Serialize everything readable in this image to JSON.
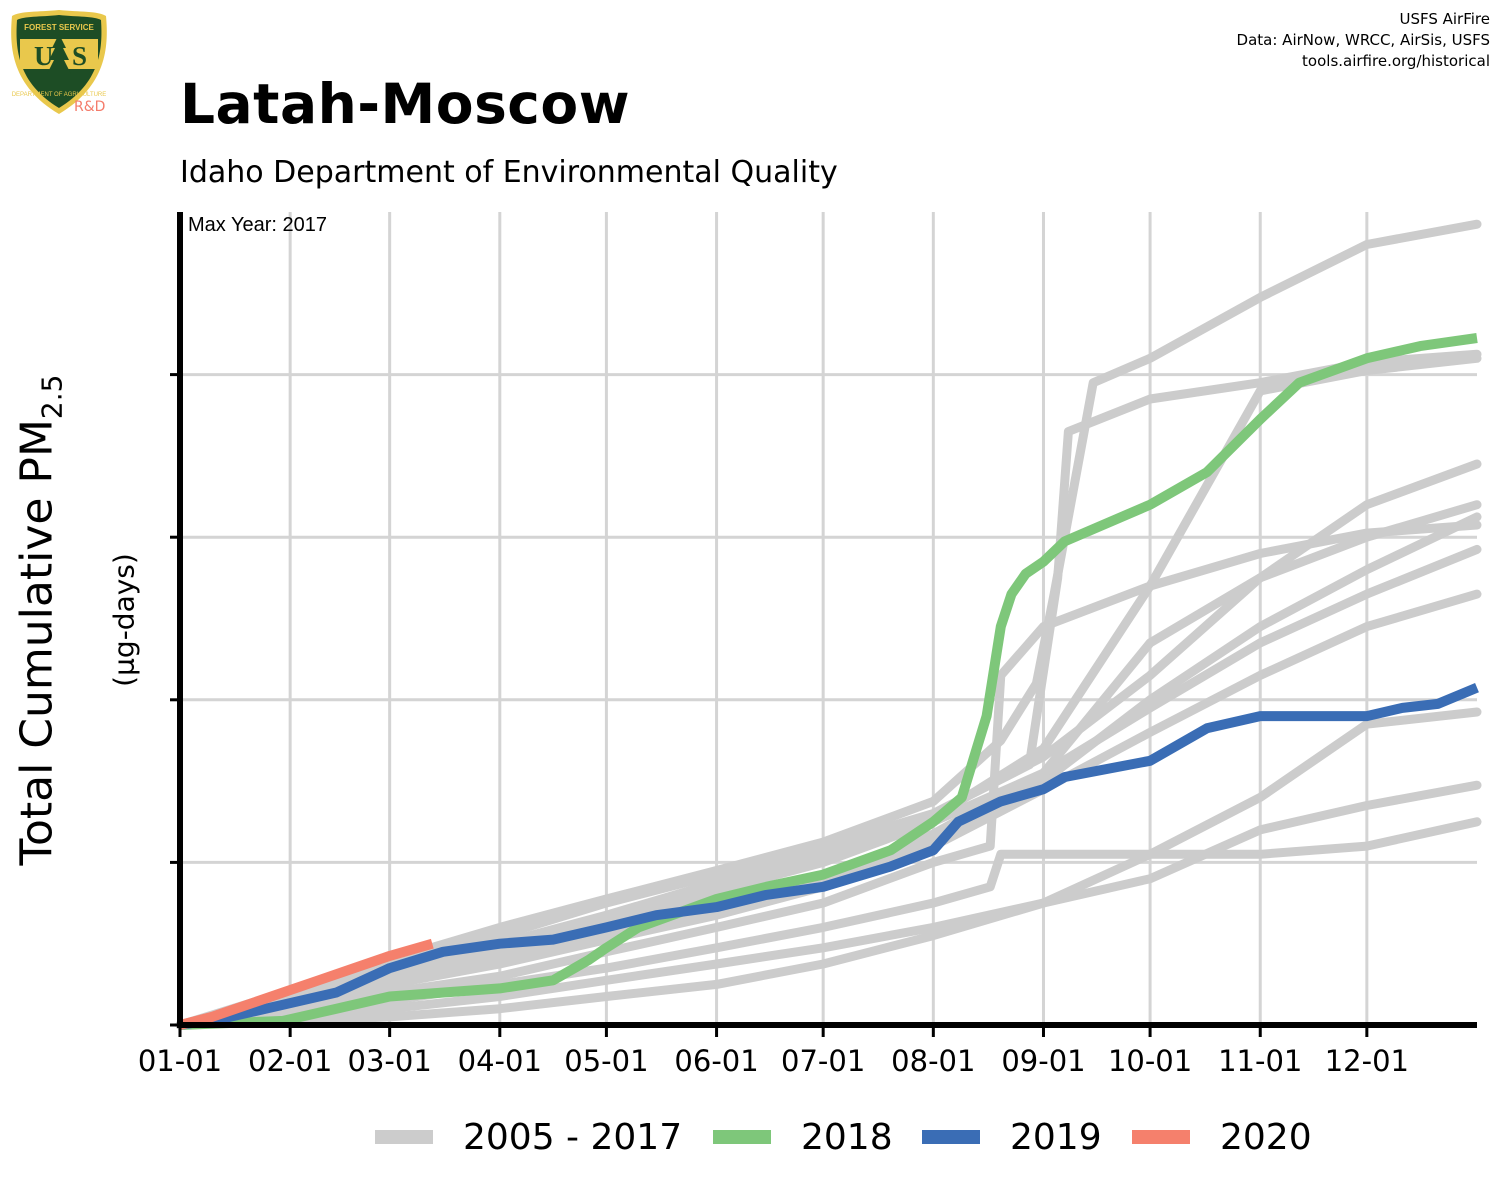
{
  "header": {
    "title": "Latah-Moscow",
    "subtitle": "Idaho Department of Environmental Quality",
    "credits": [
      "USFS AirFire",
      "Data: AirNow, WRCC, AirSis, USFS",
      "tools.airfire.org/historical"
    ],
    "logo": {
      "text_top": "FOREST SERVICE",
      "text_main": "USFS",
      "text_bottom": "DEPARTMENT OF AGRICULTURE",
      "badge": "R&D"
    }
  },
  "annotation": "Max Year: 2017",
  "chart_data": {
    "type": "line",
    "ylabel_main": "Total Cumulative PM",
    "ylabel_sub": "2.5",
    "ylabel_units": "(µg-days)",
    "x_ticks": [
      "01-01",
      "02-01",
      "03-01",
      "04-01",
      "05-01",
      "06-01",
      "07-01",
      "08-01",
      "09-01",
      "10-01",
      "11-01",
      "12-01"
    ],
    "x_tick_days": [
      1,
      32,
      60,
      91,
      121,
      152,
      182,
      213,
      244,
      274,
      305,
      335
    ],
    "x_range_days": [
      1,
      366
    ],
    "y_range": [
      0,
      100
    ],
    "y_grid": [
      20,
      40,
      60,
      80
    ],
    "y_tick_labels_shown": false,
    "colors": {
      "history": "#cccccc",
      "2018": "#7ec77a",
      "2019": "#3a6db5",
      "2020": "#f5806c"
    },
    "legend": [
      "2005 - 2017",
      "2018",
      "2019",
      "2020"
    ],
    "history_series": [
      {
        "days": [
          1,
          60,
          91,
          121,
          152,
          182,
          213,
          232,
          242,
          247,
          258,
          274,
          305,
          335,
          366
        ],
        "values": [
          0,
          8,
          12,
          15.5,
          19,
          22.5,
          27.5,
          35,
          42,
          53,
          79,
          82,
          89.5,
          96,
          98.5
        ]
      },
      {
        "days": [
          1,
          60,
          91,
          121,
          152,
          182,
          213,
          240,
          248,
          251,
          274,
          305,
          335,
          366
        ],
        "values": [
          0,
          7.5,
          11,
          15,
          18.5,
          22,
          26,
          32,
          55,
          73,
          77,
          79,
          81.5,
          82.5
        ]
      },
      {
        "days": [
          1,
          60,
          91,
          121,
          152,
          182,
          213,
          244,
          274,
          305,
          335,
          366
        ],
        "values": [
          0,
          6,
          9,
          12,
          16.5,
          20.5,
          25.5,
          34,
          54,
          78,
          80.5,
          82
        ]
      },
      {
        "days": [
          1,
          60,
          91,
          121,
          152,
          182,
          213,
          244,
          274,
          305,
          335,
          366
        ],
        "values": [
          0,
          6.5,
          10,
          13.5,
          17.5,
          21,
          26,
          33,
          43,
          55,
          64,
          69
        ]
      },
      {
        "days": [
          1,
          60,
          91,
          121,
          152,
          182,
          213,
          244,
          274,
          305,
          335,
          366
        ],
        "values": [
          0,
          5.5,
          8.5,
          11.5,
          14.5,
          18,
          23.5,
          31,
          47,
          55,
          60,
          64
        ]
      },
      {
        "days": [
          1,
          60,
          91,
          121,
          152,
          182,
          213,
          244,
          274,
          305,
          335,
          366
        ],
        "values": [
          0,
          5,
          8,
          11,
          14,
          17.5,
          23,
          30,
          40,
          49,
          56,
          62.5
        ]
      },
      {
        "days": [
          1,
          60,
          91,
          121,
          152,
          182,
          213,
          244,
          274,
          305,
          335,
          366
        ],
        "values": [
          0,
          6,
          9.5,
          13,
          16.5,
          20,
          25,
          31,
          39,
          47,
          53,
          58.5
        ]
      },
      {
        "days": [
          1,
          60,
          91,
          121,
          152,
          182,
          213,
          244,
          274,
          305,
          335,
          366
        ],
        "values": [
          0,
          5,
          7.5,
          10.5,
          13.5,
          17,
          22,
          29,
          36,
          43,
          49,
          53
        ]
      },
      {
        "days": [
          1,
          60,
          91,
          121,
          152,
          182,
          213,
          229,
          232,
          244,
          274,
          305,
          335,
          366
        ],
        "values": [
          0,
          4,
          6,
          9,
          12,
          15,
          20,
          22,
          43,
          49,
          54,
          58,
          60.5,
          61.5
        ]
      },
      {
        "days": [
          1,
          60,
          91,
          121,
          152,
          182,
          213,
          229,
          232,
          244,
          274,
          305,
          335,
          366
        ],
        "values": [
          0,
          3,
          5,
          7,
          9.5,
          12,
          15,
          17,
          21,
          21,
          21,
          21,
          22,
          25
        ]
      },
      {
        "days": [
          1,
          60,
          91,
          121,
          152,
          182,
          213,
          244,
          274,
          305,
          335,
          366
        ],
        "values": [
          0,
          2,
          3.5,
          5.5,
          7.5,
          9.5,
          12,
          15,
          21,
          28,
          37,
          38.5
        ]
      },
      {
        "days": [
          1,
          60,
          91,
          121,
          152,
          182,
          213,
          244,
          274,
          305,
          335,
          366
        ],
        "values": [
          0,
          1,
          2,
          3.5,
          5,
          7.5,
          11,
          15,
          18,
          24,
          27,
          29.5
        ]
      }
    ],
    "series": [
      {
        "name": "2018",
        "days": [
          1,
          30,
          45,
          60,
          91,
          106,
          116,
          121,
          130,
          152,
          166,
          182,
          201,
          213,
          221,
          228,
          232,
          235,
          239,
          244,
          250,
          274,
          290,
          305,
          316,
          335,
          350,
          366
        ],
        "values": [
          0,
          0.5,
          2,
          3.5,
          4.5,
          5.5,
          8,
          9.5,
          12,
          15.5,
          17,
          18.5,
          21.5,
          25,
          28,
          38,
          49,
          53,
          55.5,
          57,
          59.5,
          64,
          68,
          74.5,
          79,
          82,
          83.5,
          84.5
        ]
      },
      {
        "name": "2019",
        "days": [
          1,
          15,
          30,
          45,
          60,
          75,
          91,
          106,
          121,
          135,
          152,
          166,
          182,
          201,
          213,
          220,
          232,
          244,
          250,
          274,
          290,
          305,
          320,
          335,
          345,
          355,
          366
        ],
        "values": [
          0,
          1,
          2.5,
          4,
          7,
          9,
          10,
          10.5,
          12,
          13.5,
          14.5,
          16,
          17,
          19.5,
          21.5,
          25,
          27.5,
          29,
          30.5,
          32.5,
          36.5,
          38,
          38,
          38,
          39,
          39.5,
          41.5
        ]
      },
      {
        "name": "2020",
        "days": [
          1,
          10,
          20,
          30,
          40,
          50,
          60,
          72
        ],
        "values": [
          0,
          1,
          2.5,
          4,
          5.5,
          7,
          8.5,
          10
        ]
      }
    ]
  }
}
